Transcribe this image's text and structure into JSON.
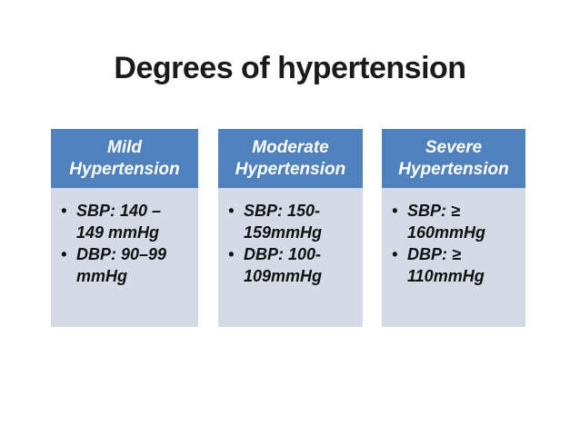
{
  "title": "Degrees of hypertension",
  "bullet_char": "•",
  "colors": {
    "title_text": "#1a1a1a",
    "header_bg": "#4f81bd",
    "header_text": "#ffffff",
    "body_bg": "#d5dae7",
    "body_text": "#111111"
  },
  "cards": [
    {
      "title": "Mild Hypertension",
      "bullets": [
        {
          "lines": [
            "SBP: 140 –",
            "149 mmHg"
          ]
        },
        {
          "lines": [
            "DBP: 90–99",
            "mmHg"
          ]
        }
      ]
    },
    {
      "title": "Moderate Hypertension",
      "bullets": [
        {
          "lines": [
            "SBP: 150-",
            "159mmHg"
          ]
        },
        {
          "lines": [
            "DBP: 100-",
            "109mmHg"
          ]
        }
      ]
    },
    {
      "title": "Severe Hypertension",
      "bullets": [
        {
          "lines": [
            "SBP: ≥",
            "160mmHg"
          ]
        },
        {
          "lines": [
            "DBP: ≥",
            "110mmHg"
          ]
        }
      ]
    }
  ]
}
